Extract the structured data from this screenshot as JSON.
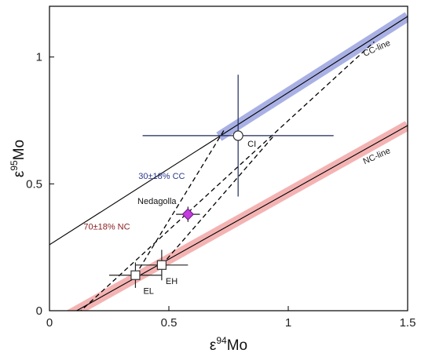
{
  "chart_data": {
    "type": "scatter",
    "title": "",
    "xlabel": {
      "base": "ε",
      "sup": "94",
      "unit": "Mo"
    },
    "ylabel": {
      "base": "ε",
      "sup": "95",
      "unit": "Mo"
    },
    "xlim": [
      0,
      1.5
    ],
    "ylim": [
      0,
      1.2
    ],
    "x_ticks": [
      0,
      0.5,
      1,
      1.5
    ],
    "y_ticks": [
      0,
      0.5,
      1
    ],
    "x_tick_labels": [
      "0",
      "0.5",
      "1",
      "1.5"
    ],
    "y_tick_labels": [
      "0",
      "0.5",
      "1"
    ],
    "grid": false,
    "reference_lines": [
      {
        "label": "CC-line",
        "x": [
          0,
          1.5
        ],
        "y": [
          0.26,
          1.16
        ],
        "fit_segment": [
          0.71,
          1.5
        ],
        "color": "#000000",
        "band_color": "#7b86d6"
      },
      {
        "label": "NC-line",
        "x": [
          0,
          1.5
        ],
        "y": [
          -0.06,
          0.73
        ],
        "fit_segment": [
          0,
          1.5
        ],
        "color": "#000000",
        "band_color": "#ee8a8a"
      }
    ],
    "points": [
      {
        "label": "CI",
        "x": 0.79,
        "y": 0.69,
        "xerr": 0.4,
        "yerr": 0.24,
        "marker": "circle",
        "fill": "#ffffff"
      },
      {
        "label": "EL",
        "x": 0.36,
        "y": 0.14,
        "xerr": 0.11,
        "yerr": 0.05,
        "marker": "square",
        "fill": "#ffffff"
      },
      {
        "label": "EH",
        "x": 0.47,
        "y": 0.18,
        "xerr": 0.11,
        "yerr": 0.06,
        "marker": "square",
        "fill": "#ffffff"
      },
      {
        "label": "Nedagolla",
        "x": 0.58,
        "y": 0.38,
        "xerr": 0.05,
        "yerr": 0.03,
        "marker": "diamond",
        "fill": "#c43be0"
      }
    ],
    "mixing_lines": [
      {
        "from": [
          0.36,
          0.14
        ],
        "to": [
          0.73,
          0.71
        ]
      },
      {
        "from": [
          0.47,
          0.18
        ],
        "to": [
          0.94,
          0.69
        ]
      },
      {
        "from": [
          0.12,
          -0.01
        ],
        "to": [
          1.36,
          1.06
        ]
      }
    ],
    "annotations": [
      {
        "text": "30±18% CC",
        "x": 0.47,
        "y": 0.52,
        "color": "#2b3a8c"
      },
      {
        "text": "Nedagolla",
        "x": 0.45,
        "y": 0.42,
        "color": "#111111"
      },
      {
        "text": "70±18% NC",
        "x": 0.24,
        "y": 0.32,
        "color": "#8a1c1c"
      }
    ]
  }
}
